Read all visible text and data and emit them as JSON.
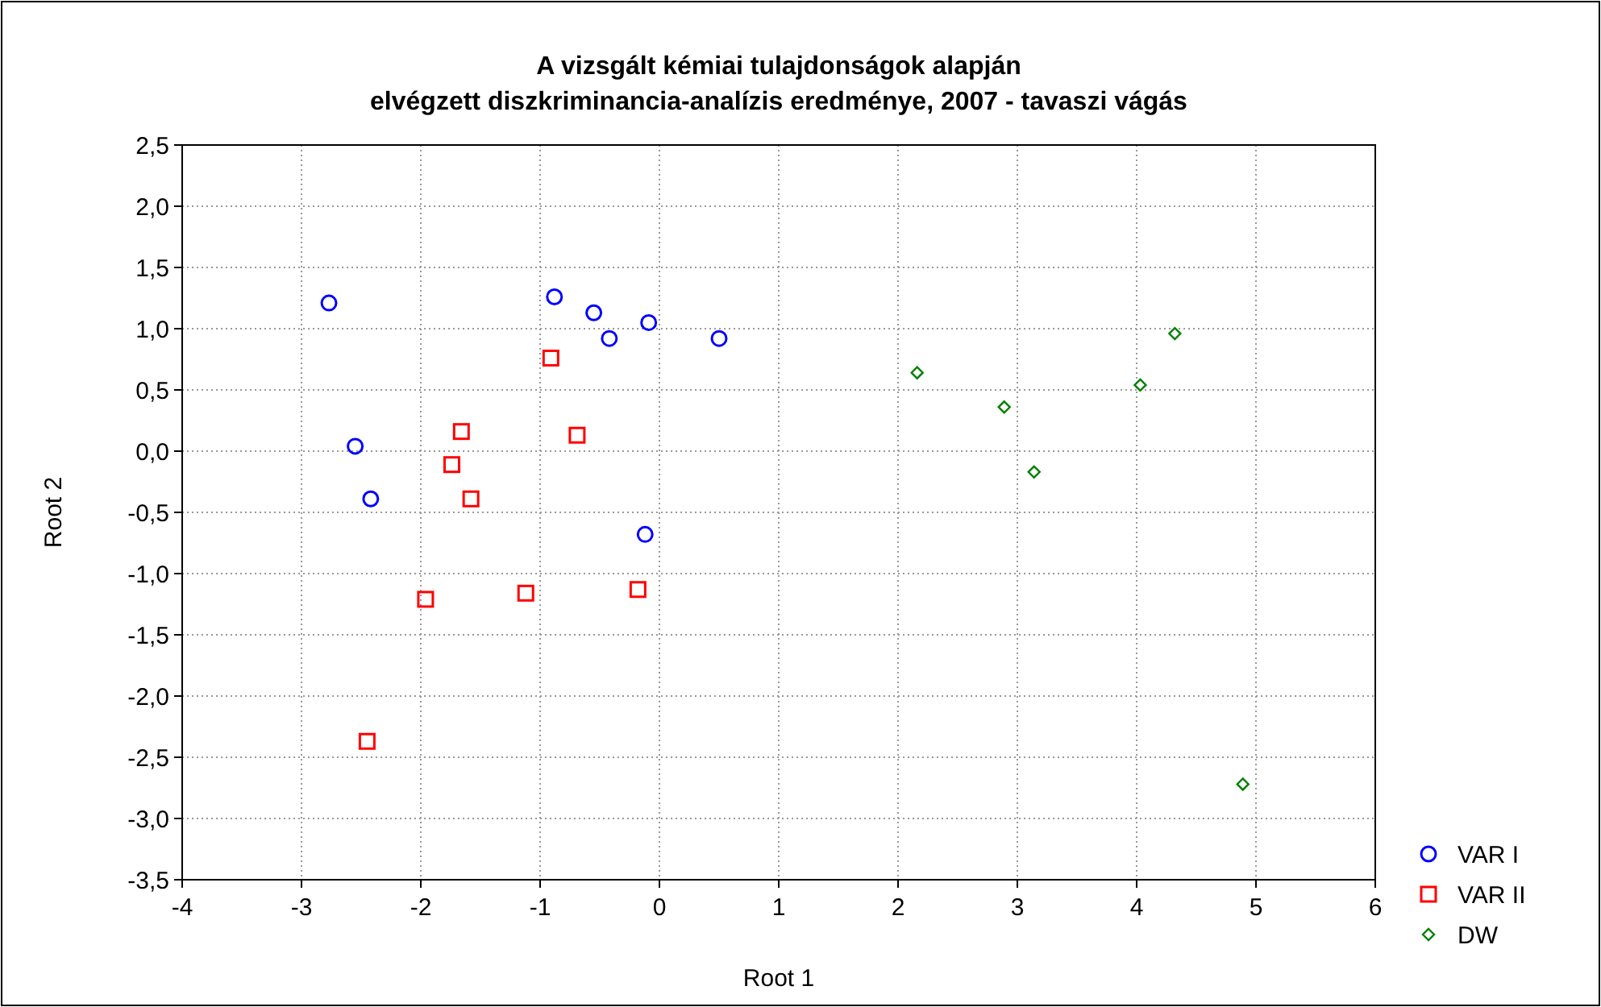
{
  "chart_data": {
    "type": "scatter",
    "title": "A vizsgált kémiai tulajdonságok alapján\nelvégzett diszkriminancia-analízis eredménye, 2007 - tavaszi vágás",
    "xlabel": "Root 1",
    "ylabel": "Root 2",
    "xlim": [
      -4,
      6
    ],
    "ylim": [
      -3.5,
      2.5
    ],
    "xticks": [
      -4,
      -3,
      -2,
      -1,
      0,
      1,
      2,
      3,
      4,
      5,
      6
    ],
    "yticks": [
      {
        "value": 2.5,
        "label": "2,5"
      },
      {
        "value": 2,
        "label": "2,0"
      },
      {
        "value": 1.5,
        "label": "1,5"
      },
      {
        "value": 1,
        "label": "1,0"
      },
      {
        "value": 0.5,
        "label": "0,5"
      },
      {
        "value": 0,
        "label": "0,0"
      },
      {
        "value": -0.5,
        "label": "-0,5"
      },
      {
        "value": -1,
        "label": "-1,0"
      },
      {
        "value": -1.5,
        "label": "-1,5"
      },
      {
        "value": -2,
        "label": "-2,0"
      },
      {
        "value": -2.5,
        "label": "-2,5"
      },
      {
        "value": -3,
        "label": "-3,0"
      },
      {
        "value": -3.5,
        "label": "-3,5"
      }
    ],
    "grid": true,
    "legend": "bottom right",
    "series": [
      {
        "name": "VAR I",
        "color": "#0000ff",
        "marker": "circle",
        "x": [
          -2.77,
          -2.55,
          -2.42,
          -0.88,
          -0.55,
          -0.42,
          -0.09,
          -0.12,
          0.5
        ],
        "values": [
          1.21,
          0.04,
          -0.39,
          1.26,
          1.13,
          0.92,
          1.05,
          -0.68,
          0.92
        ]
      },
      {
        "name": "VAR II",
        "color": "#ff0000",
        "marker": "square",
        "x": [
          -0.91,
          -1.66,
          -0.69,
          -1.74,
          -1.58,
          -1.96,
          -1.12,
          -0.18,
          -2.45
        ],
        "values": [
          0.76,
          0.16,
          0.13,
          -0.11,
          -0.39,
          -1.21,
          -1.16,
          -1.13,
          -2.37
        ]
      },
      {
        "name": "DW",
        "color": "#008000",
        "marker": "diamond",
        "x": [
          2.16,
          2.89,
          3.14,
          4.03,
          4.32,
          4.89
        ],
        "values": [
          0.64,
          0.36,
          -0.17,
          0.54,
          0.96,
          -2.72
        ]
      }
    ]
  }
}
